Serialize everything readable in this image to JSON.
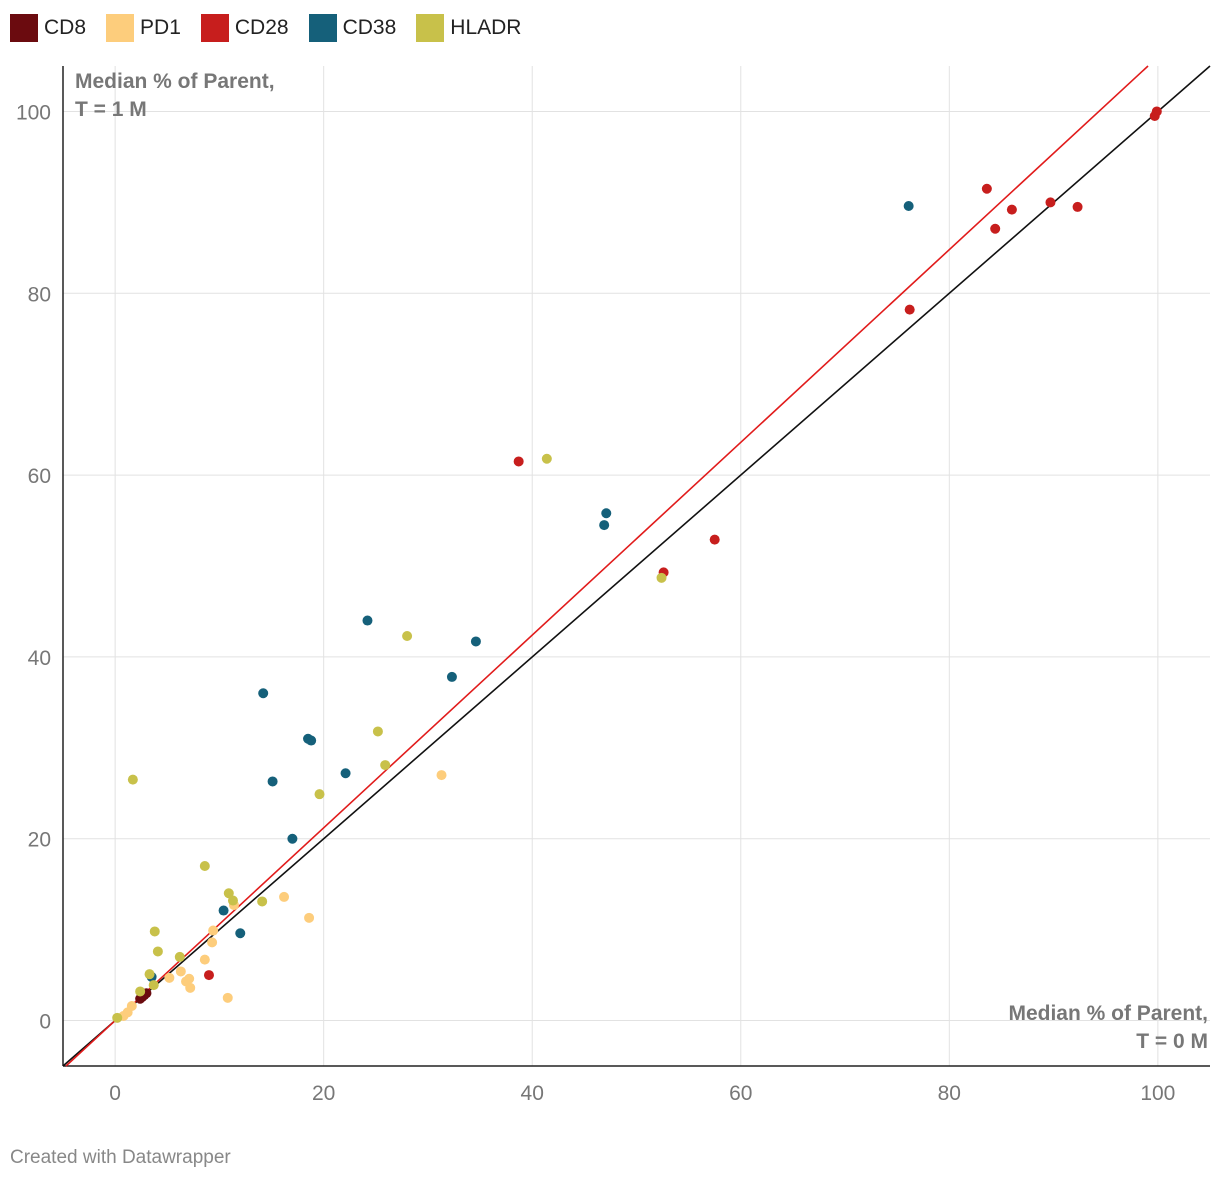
{
  "chart_data": {
    "type": "scatter",
    "xlabel": "Median % of Parent, T = 0 M",
    "ylabel": "Median % of Parent, T = 1 M",
    "xlabel_lines": [
      "Median % of Parent,",
      "T = 0 M"
    ],
    "ylabel_lines": [
      "Median % of Parent,",
      "T = 1 M"
    ],
    "xlim": [
      -5,
      105
    ],
    "ylim": [
      -5,
      105
    ],
    "xticks": [
      0,
      20,
      40,
      60,
      80,
      100
    ],
    "yticks": [
      0,
      20,
      40,
      60,
      80,
      100
    ],
    "grid": true,
    "legend_position": "top-left",
    "series": [
      {
        "name": "CD8",
        "color": "#6b0b0f",
        "points": [
          [
            2.8,
            2.8
          ],
          [
            2.6,
            2.6
          ],
          [
            3.0,
            3.0
          ],
          [
            2.4,
            2.4
          ]
        ]
      },
      {
        "name": "PD1",
        "color": "#fdcd7c",
        "points": [
          [
            0.8,
            0.5
          ],
          [
            1.2,
            0.9
          ],
          [
            1.6,
            1.6
          ],
          [
            5.2,
            4.7
          ],
          [
            6.3,
            5.4
          ],
          [
            6.8,
            4.3
          ],
          [
            7.1,
            4.6
          ],
          [
            7.2,
            3.6
          ],
          [
            8.6,
            6.7
          ],
          [
            9.3,
            8.6
          ],
          [
            9.4,
            9.9
          ],
          [
            10.8,
            2.5
          ],
          [
            11.4,
            12.7
          ],
          [
            16.2,
            13.6
          ],
          [
            18.6,
            11.3
          ],
          [
            31.3,
            27.0
          ]
        ]
      },
      {
        "name": "CD28",
        "color": "#c71e1d",
        "points": [
          [
            9.0,
            5.0
          ],
          [
            38.7,
            61.5
          ],
          [
            52.6,
            49.3
          ],
          [
            57.5,
            52.9
          ],
          [
            76.2,
            78.2
          ],
          [
            83.6,
            91.5
          ],
          [
            84.4,
            87.1
          ],
          [
            86.0,
            89.2
          ],
          [
            89.7,
            90.0
          ],
          [
            92.3,
            89.5
          ],
          [
            99.7,
            99.5
          ],
          [
            99.9,
            100.0
          ]
        ]
      },
      {
        "name": "CD38",
        "color": "#15607a",
        "points": [
          [
            3.5,
            4.8
          ],
          [
            10.4,
            12.1
          ],
          [
            12.0,
            9.6
          ],
          [
            14.2,
            36.0
          ],
          [
            15.1,
            26.3
          ],
          [
            17.0,
            20.0
          ],
          [
            18.5,
            31.0
          ],
          [
            18.8,
            30.8
          ],
          [
            22.1,
            27.2
          ],
          [
            24.2,
            44.0
          ],
          [
            32.3,
            37.8
          ],
          [
            34.6,
            41.7
          ],
          [
            46.9,
            54.5
          ],
          [
            47.1,
            55.8
          ],
          [
            76.1,
            89.6
          ]
        ]
      },
      {
        "name": "HLADR",
        "color": "#c8c14a",
        "points": [
          [
            0.2,
            0.3
          ],
          [
            1.7,
            26.5
          ],
          [
            2.4,
            3.2
          ],
          [
            3.3,
            5.1
          ],
          [
            3.7,
            3.9
          ],
          [
            3.8,
            9.8
          ],
          [
            4.1,
            7.6
          ],
          [
            6.2,
            7.0
          ],
          [
            8.6,
            17.0
          ],
          [
            10.9,
            14.0
          ],
          [
            11.3,
            13.2
          ],
          [
            14.1,
            13.1
          ],
          [
            19.6,
            24.9
          ],
          [
            25.2,
            31.8
          ],
          [
            25.9,
            28.1
          ],
          [
            28.0,
            42.3
          ],
          [
            41.4,
            61.8
          ],
          [
            52.4,
            48.7
          ]
        ]
      }
    ],
    "reference_lines": [
      {
        "name": "identity line y = x",
        "color": "#111111",
        "slope": 1.0,
        "intercept": 0
      },
      {
        "name": "trend line",
        "color": "#e11b1b",
        "slope": 1.06,
        "intercept": 0
      }
    ]
  },
  "footer": "Created with Datawrapper"
}
